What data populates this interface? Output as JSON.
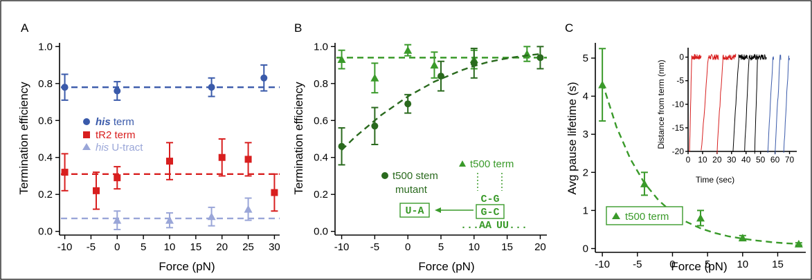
{
  "chart_data": [
    {
      "panel": "A",
      "type": "scatter",
      "xlabel": "Force (pN)",
      "ylabel": "Termination efficiency",
      "xlim": [
        -11,
        31
      ],
      "ylim": [
        -0.02,
        1.02
      ],
      "xticks": [
        -10,
        -5,
        0,
        5,
        10,
        15,
        20,
        25,
        30
      ],
      "yticks": [
        0.0,
        0.2,
        0.4,
        0.6,
        0.8,
        1.0
      ],
      "xtick_labels": [
        "-10",
        "-5",
        "0",
        "5",
        "10",
        "15",
        "20",
        "25",
        "30"
      ],
      "ytick_labels": [
        "0.0",
        "0.2",
        "0.4",
        "0.6",
        "0.8",
        "1.0"
      ],
      "legend_position": "center-left",
      "series": [
        {
          "name": "his term",
          "name_italic": "his",
          "name_rest": " term",
          "marker": "circle",
          "color": "#3a5aaa",
          "x": [
            -10,
            0,
            18,
            28
          ],
          "y": [
            0.78,
            0.76,
            0.78,
            0.83
          ],
          "err": [
            0.07,
            0.05,
            0.05,
            0.07
          ],
          "fit_y": 0.78
        },
        {
          "name": "tR2 term",
          "name_italic": "",
          "name_rest": "tR2 term",
          "marker": "square",
          "color": "#d81f1f",
          "x": [
            -10,
            -4,
            0,
            10,
            20,
            25,
            30
          ],
          "y": [
            0.32,
            0.22,
            0.29,
            0.38,
            0.4,
            0.39,
            0.21
          ],
          "err": [
            0.1,
            0.1,
            0.06,
            0.1,
            0.1,
            0.09,
            0.1
          ],
          "fit_y": 0.31
        },
        {
          "name": "his U-tract",
          "name_italic": "his",
          "name_rest": " U-tract",
          "marker": "triangle",
          "color": "#9aa6d8",
          "x": [
            0,
            10,
            18,
            25
          ],
          "y": [
            0.06,
            0.06,
            0.08,
            0.12
          ],
          "err": [
            0.05,
            0.04,
            0.05,
            0.06
          ],
          "fit_y": 0.07
        }
      ]
    },
    {
      "panel": "B",
      "type": "scatter",
      "xlabel": "Force (pN)",
      "ylabel": "Termination efficiency",
      "xlim": [
        -11,
        21
      ],
      "ylim": [
        -0.02,
        1.02
      ],
      "xticks": [
        -10,
        -5,
        0,
        5,
        10,
        15,
        20
      ],
      "yticks": [
        0.0,
        0.2,
        0.4,
        0.6,
        0.8,
        1.0
      ],
      "xtick_labels": [
        "-10",
        "-5",
        "0",
        "5",
        "10",
        "15",
        "20"
      ],
      "ytick_labels": [
        "0.0",
        "0.2",
        "0.4",
        "0.6",
        "0.8",
        "1.0"
      ],
      "series": [
        {
          "name": "t500 term",
          "marker": "triangle",
          "color": "#3a9a2a",
          "x": [
            -10,
            -5,
            0,
            4,
            10,
            18
          ],
          "y": [
            0.93,
            0.83,
            0.98,
            0.9,
            0.93,
            0.96
          ],
          "err": [
            0.05,
            0.08,
            0.03,
            0.07,
            0.05,
            0.04
          ],
          "fit_y": 0.94
        },
        {
          "name": "t500 stem mutant",
          "name_lines": [
            "t500 stem",
            "mutant"
          ],
          "marker": "circle",
          "color": "#2a6a1e",
          "x": [
            -10,
            -5,
            0,
            5,
            10,
            20
          ],
          "y": [
            0.46,
            0.57,
            0.69,
            0.84,
            0.91,
            0.94
          ],
          "err": [
            0.1,
            0.1,
            0.05,
            0.08,
            0.08,
            0.06
          ],
          "fit_x": [
            -10,
            -8,
            -6,
            -4,
            -2,
            0,
            2,
            4,
            6,
            8,
            10,
            12,
            14,
            16,
            18,
            20
          ],
          "fit_y": [
            0.44,
            0.51,
            0.57,
            0.63,
            0.68,
            0.73,
            0.77,
            0.81,
            0.84,
            0.87,
            0.895,
            0.915,
            0.93,
            0.942,
            0.952,
            0.96
          ]
        }
      ],
      "diagram": {
        "top_pair": "C-G",
        "boxed_pair": "G-C",
        "mutant_pair": "U-A",
        "left_tail": "...AA",
        "right_tail": "UU..."
      }
    },
    {
      "panel": "C",
      "type": "scatter",
      "xlabel": "Force (pN)",
      "ylabel": "Avg pause lifetime (s)",
      "xlim": [
        -11,
        19
      ],
      "ylim": [
        -0.1,
        5.4
      ],
      "xticks": [
        -10,
        -5,
        0,
        5,
        10,
        15
      ],
      "yticks": [
        0,
        1,
        2,
        3,
        4,
        5
      ],
      "xtick_labels": [
        "-10",
        "-5",
        "0",
        "5",
        "10",
        "15"
      ],
      "ytick_labels": [
        "0",
        "1",
        "2",
        "3",
        "4",
        "5"
      ],
      "legend_position": "bottom-left",
      "series": [
        {
          "name": "t500 term",
          "marker": "triangle",
          "color": "#3a9a2a",
          "x": [
            -10,
            -4,
            4,
            10,
            18
          ],
          "y": [
            4.3,
            1.7,
            0.8,
            0.28,
            0.12
          ],
          "err": [
            0.95,
            0.3,
            0.2,
            0.06,
            0.03
          ],
          "fit_x": [
            -10,
            -8,
            -6,
            -4,
            -2,
            0,
            2,
            4,
            6,
            8,
            10,
            12,
            14,
            16,
            18
          ],
          "fit_y": [
            4.35,
            3.2,
            2.35,
            1.72,
            1.27,
            0.94,
            0.7,
            0.53,
            0.41,
            0.32,
            0.26,
            0.21,
            0.17,
            0.14,
            0.12
          ]
        }
      ],
      "inset": {
        "xlabel": "Time (sec)",
        "ylabel": "Distance from term (nm)",
        "xlim": [
          0,
          75
        ],
        "ylim": [
          -20,
          2
        ],
        "xticks": [
          0,
          10,
          20,
          30,
          40,
          50,
          60,
          70
        ],
        "yticks": [
          0,
          -5,
          -10,
          -15,
          -20
        ],
        "xtick_labels": [
          "0",
          "10",
          "20",
          "30",
          "40",
          "50",
          "60",
          "70"
        ],
        "ytick_labels": [
          "0",
          "-5",
          "-10",
          "-15",
          "-20"
        ],
        "traces": [
          {
            "color": "#d81f1f",
            "t_start": 1,
            "t_dwell_start": 2.5,
            "t_end": 9
          },
          {
            "color": "#d81f1f",
            "t_start": 9,
            "t_dwell_start": 14,
            "t_end": 21
          },
          {
            "color": "#d81f1f",
            "t_start": 20,
            "t_dwell_start": 24,
            "t_end": 33
          },
          {
            "color": "#000000",
            "t_start": 31,
            "t_dwell_start": 35,
            "t_end": 41
          },
          {
            "color": "#000000",
            "t_start": 39,
            "t_dwell_start": 42,
            "t_end": 48
          },
          {
            "color": "#000000",
            "t_start": 46,
            "t_dwell_start": 48,
            "t_end": 54
          },
          {
            "color": "#3a5aaa",
            "t_start": 55,
            "t_dwell_start": 58.5,
            "t_end": 59
          },
          {
            "color": "#3a5aaa",
            "t_start": 60,
            "t_dwell_start": 63.5,
            "t_end": 64
          },
          {
            "color": "#3a5aaa",
            "t_start": 66,
            "t_dwell_start": 69.5,
            "t_end": 70
          }
        ]
      }
    }
  ]
}
